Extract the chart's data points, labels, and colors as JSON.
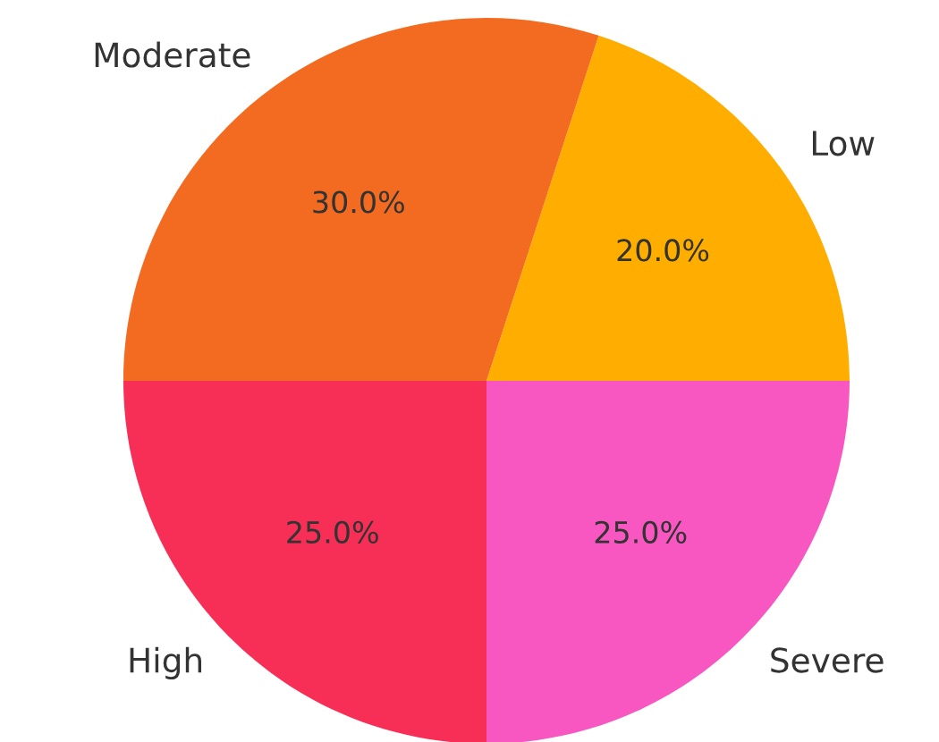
{
  "chart_data": {
    "type": "pie",
    "categories": [
      "Low",
      "Moderate",
      "High",
      "Severe"
    ],
    "values": [
      20,
      30,
      25,
      25
    ],
    "colors": [
      "#ffae00",
      "#f26b21",
      "#f72f57",
      "#f857c1"
    ],
    "value_labels": [
      "20.0%",
      "30.0%",
      "25.0%",
      "25.0%"
    ]
  }
}
